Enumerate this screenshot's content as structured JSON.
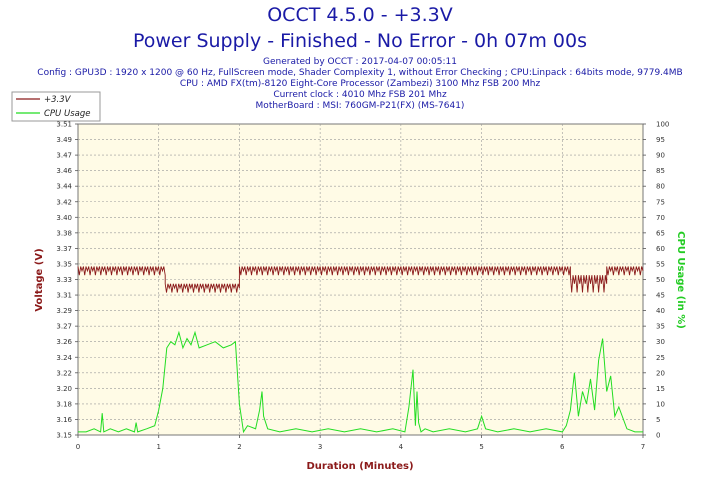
{
  "chart_data": {
    "type": "line",
    "title": "OCCT 4.5.0 - +3.3V",
    "subtitle": "Power Supply - Finished - No Error - 0h 07m 00s",
    "info_lines": [
      "Generated by OCCT : 2017-04-07 00:05:11",
      "Config : GPU3D : 1920 x 1200 @ 60 Hz, FullScreen mode, Shader Complexity 1, without Error Checking ; CPU:Linpack : 64bits mode, 9779.4MB",
      "CPU : AMD FX(tm)-8120 Eight-Core Processor (Zambezi) 3100 Mhz FSB 200 Mhz",
      "Current clock : 4010 Mhz FSB 201 Mhz",
      "MotherBoard : MSI: 760GM-P21(FX) (MS-7641)"
    ],
    "xlabel": "Duration (Minutes)",
    "ylabel": "Voltage (V)",
    "y2label": "CPU Usage (in %)",
    "xlim": [
      0,
      7
    ],
    "ylim": [
      3.15,
      3.51
    ],
    "y2lim": [
      0,
      100
    ],
    "x_ticks": [
      "0",
      "1",
      "2",
      "3",
      "4",
      "5",
      "6",
      "7"
    ],
    "y_ticks": [
      "3.15",
      "3.16",
      "3.18",
      "3.20",
      "3.22",
      "3.24",
      "3.26",
      "3.27",
      "3.29",
      "3.31",
      "3.33",
      "3.35",
      "3.37",
      "3.38",
      "3.40",
      "3.42",
      "3.44",
      "3.46",
      "3.47",
      "3.49",
      "3.51"
    ],
    "y2_ticks": [
      "0",
      "5",
      "10",
      "15",
      "20",
      "25",
      "30",
      "35",
      "40",
      "45",
      "50",
      "55",
      "60",
      "65",
      "70",
      "75",
      "80",
      "85",
      "90",
      "95",
      "100"
    ],
    "grid": true,
    "legend_position": "top-left",
    "series": [
      {
        "name": "+3.3V",
        "axis": "left",
        "color": "#8b1a1a",
        "segments": [
          {
            "x_start": 0,
            "x_end": 1.08,
            "high": 3.345,
            "low": 3.335
          },
          {
            "x_start": 1.08,
            "x_end": 2.0,
            "high": 3.325,
            "low": 3.315
          },
          {
            "x_start": 2.0,
            "x_end": 6.1,
            "high": 3.345,
            "low": 3.335
          },
          {
            "x_start": 6.1,
            "x_end": 6.55,
            "high": 3.335,
            "low": 3.315
          },
          {
            "x_start": 6.55,
            "x_end": 7.0,
            "high": 3.345,
            "low": 3.335
          }
        ]
      },
      {
        "name": "CPU Usage",
        "axis": "right",
        "color": "#22dd22",
        "x": [
          0,
          0.1,
          0.2,
          0.28,
          0.3,
          0.32,
          0.4,
          0.5,
          0.6,
          0.7,
          0.72,
          0.74,
          0.85,
          0.95,
          1.0,
          1.05,
          1.1,
          1.15,
          1.2,
          1.25,
          1.3,
          1.35,
          1.4,
          1.45,
          1.5,
          1.6,
          1.7,
          1.8,
          1.9,
          1.95,
          2.0,
          2.05,
          2.1,
          2.2,
          2.25,
          2.28,
          2.3,
          2.35,
          2.5,
          2.7,
          2.9,
          3.1,
          3.3,
          3.5,
          3.7,
          3.9,
          4.05,
          4.1,
          4.15,
          4.18,
          4.2,
          4.22,
          4.25,
          4.3,
          4.4,
          4.6,
          4.8,
          4.95,
          5.0,
          5.05,
          5.2,
          5.4,
          5.6,
          5.8,
          6.0,
          6.05,
          6.1,
          6.15,
          6.2,
          6.25,
          6.3,
          6.35,
          6.4,
          6.45,
          6.5,
          6.55,
          6.6,
          6.65,
          6.7,
          6.8,
          6.9,
          7.0
        ],
        "values": [
          1,
          1,
          2,
          1,
          7,
          1,
          2,
          1,
          2,
          1,
          4,
          1,
          2,
          3,
          8,
          15,
          28,
          30,
          29,
          33,
          28,
          31,
          29,
          33,
          28,
          29,
          30,
          28,
          29,
          30,
          10,
          1,
          3,
          2,
          8,
          14,
          6,
          2,
          1,
          2,
          1,
          2,
          1,
          2,
          1,
          2,
          1,
          9,
          21,
          3,
          14,
          4,
          1,
          2,
          1,
          2,
          1,
          2,
          6,
          2,
          1,
          2,
          1,
          2,
          1,
          3,
          8,
          20,
          6,
          14,
          10,
          18,
          8,
          24,
          31,
          14,
          19,
          6,
          9,
          2,
          1,
          1
        ]
      }
    ]
  },
  "legend": [
    {
      "label": "+3.3V",
      "color": "#8b1a1a"
    },
    {
      "label": "CPU Usage",
      "color": "#22dd22"
    }
  ]
}
